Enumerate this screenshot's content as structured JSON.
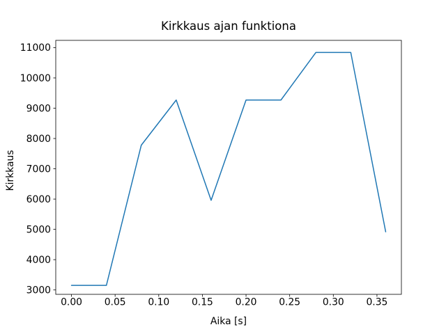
{
  "chart_data": {
    "type": "line",
    "title": "Kirkkaus ajan funktiona",
    "xlabel": "Aika [s]",
    "ylabel": "Kirkkaus",
    "x": [
      0.0,
      0.04,
      0.08,
      0.12,
      0.16,
      0.2,
      0.24,
      0.28,
      0.32,
      0.36
    ],
    "y": [
      3150,
      3150,
      7780,
      9270,
      5960,
      9270,
      9270,
      10840,
      10840,
      4920
    ],
    "xlim": [
      -0.018,
      0.378
    ],
    "ylim": [
      2855,
      11240
    ],
    "xticks": [
      0.0,
      0.05,
      0.1,
      0.15,
      0.2,
      0.25,
      0.3,
      0.35
    ],
    "xtick_labels": [
      "0.00",
      "0.05",
      "0.10",
      "0.15",
      "0.20",
      "0.25",
      "0.30",
      "0.35"
    ],
    "yticks": [
      3000,
      4000,
      5000,
      6000,
      7000,
      8000,
      9000,
      10000,
      11000
    ],
    "ytick_labels": [
      "3000",
      "4000",
      "5000",
      "6000",
      "7000",
      "8000",
      "9000",
      "10000",
      "11000"
    ],
    "line_color": "#1f77b4",
    "line_width": 1.5,
    "spine_color": "#000000",
    "background_color": "#ffffff",
    "grid": false,
    "legend": null
  }
}
